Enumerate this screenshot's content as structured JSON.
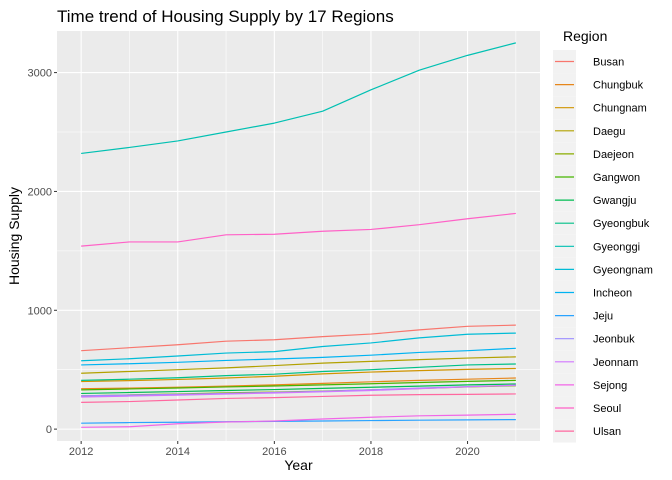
{
  "chart_data": {
    "type": "line",
    "title": "Time trend of Housing Supply by 17 Regions",
    "xlabel": "Year",
    "ylabel": "Housing Supply",
    "xlim": [
      2011.5,
      2021.5
    ],
    "ylim": [
      -100,
      3350
    ],
    "x_ticks": [
      2012,
      2014,
      2016,
      2018,
      2020
    ],
    "y_ticks": [
      0,
      1000,
      2000,
      3000
    ],
    "legend_title": "Region",
    "legend_position": "right",
    "x": [
      2012,
      2013,
      2014,
      2015,
      2016,
      2017,
      2018,
      2019,
      2020,
      2021
    ],
    "series": [
      {
        "name": "Busan",
        "color": "#F8766D",
        "values": [
          660,
          685,
          710,
          740,
          752,
          778,
          800,
          835,
          865,
          875
        ]
      },
      {
        "name": "Chungbuk",
        "color": "#E6861B",
        "values": [
          340,
          345,
          352,
          362,
          372,
          385,
          398,
          410,
          420,
          430
        ]
      },
      {
        "name": "Chungnam",
        "color": "#D09400",
        "values": [
          400,
          408,
          418,
          430,
          445,
          465,
          480,
          492,
          503,
          510
        ]
      },
      {
        "name": "Daegu",
        "color": "#B2A100",
        "values": [
          470,
          485,
          500,
          515,
          535,
          555,
          570,
          585,
          598,
          608
        ]
      },
      {
        "name": "Daejeon",
        "color": "#89AC00",
        "values": [
          280,
          288,
          296,
          305,
          312,
          320,
          330,
          342,
          355,
          365
        ]
      },
      {
        "name": "Gangwon",
        "color": "#45B500",
        "values": [
          330,
          338,
          346,
          355,
          363,
          372,
          382,
          392,
          402,
          410
        ]
      },
      {
        "name": "Gwangju",
        "color": "#00BC51",
        "values": [
          300,
          308,
          316,
          325,
          333,
          343,
          352,
          362,
          372,
          380
        ]
      },
      {
        "name": "Gyeongbuk",
        "color": "#00C087",
        "values": [
          410,
          420,
          432,
          450,
          462,
          485,
          500,
          520,
          540,
          548
        ]
      },
      {
        "name": "Gyeonggi",
        "color": "#00C0B2",
        "values": [
          2320,
          2370,
          2425,
          2500,
          2575,
          2675,
          2855,
          3020,
          3145,
          3250
        ]
      },
      {
        "name": "Gyeongnam",
        "color": "#00BCD6",
        "values": [
          575,
          592,
          615,
          640,
          652,
          695,
          725,
          768,
          798,
          808
        ]
      },
      {
        "name": "Incheon",
        "color": "#00B3F2",
        "values": [
          540,
          550,
          562,
          578,
          590,
          604,
          622,
          645,
          660,
          680
        ]
      },
      {
        "name": "Jeju",
        "color": "#29A3FF",
        "values": [
          50,
          55,
          58,
          62,
          65,
          68,
          72,
          75,
          78,
          80
        ]
      },
      {
        "name": "Jeonbuk",
        "color": "#9C8DFF",
        "values": [
          280,
          286,
          292,
          300,
          308,
          318,
          330,
          345,
          358,
          368
        ]
      },
      {
        "name": "Jeonnam",
        "color": "#D277FF",
        "values": [
          270,
          278,
          286,
          295,
          304,
          314,
          325,
          340,
          356,
          370
        ]
      },
      {
        "name": "Sejong",
        "color": "#F166E8",
        "values": [
          15,
          20,
          45,
          60,
          68,
          85,
          100,
          112,
          118,
          125
        ]
      },
      {
        "name": "Seoul",
        "color": "#FF61C7",
        "values": [
          1540,
          1575,
          1575,
          1635,
          1640,
          1665,
          1680,
          1720,
          1770,
          1815
        ]
      },
      {
        "name": "Ulsan",
        "color": "#FF689F",
        "values": [
          225,
          232,
          245,
          258,
          265,
          275,
          285,
          290,
          292,
          296
        ]
      }
    ]
  }
}
